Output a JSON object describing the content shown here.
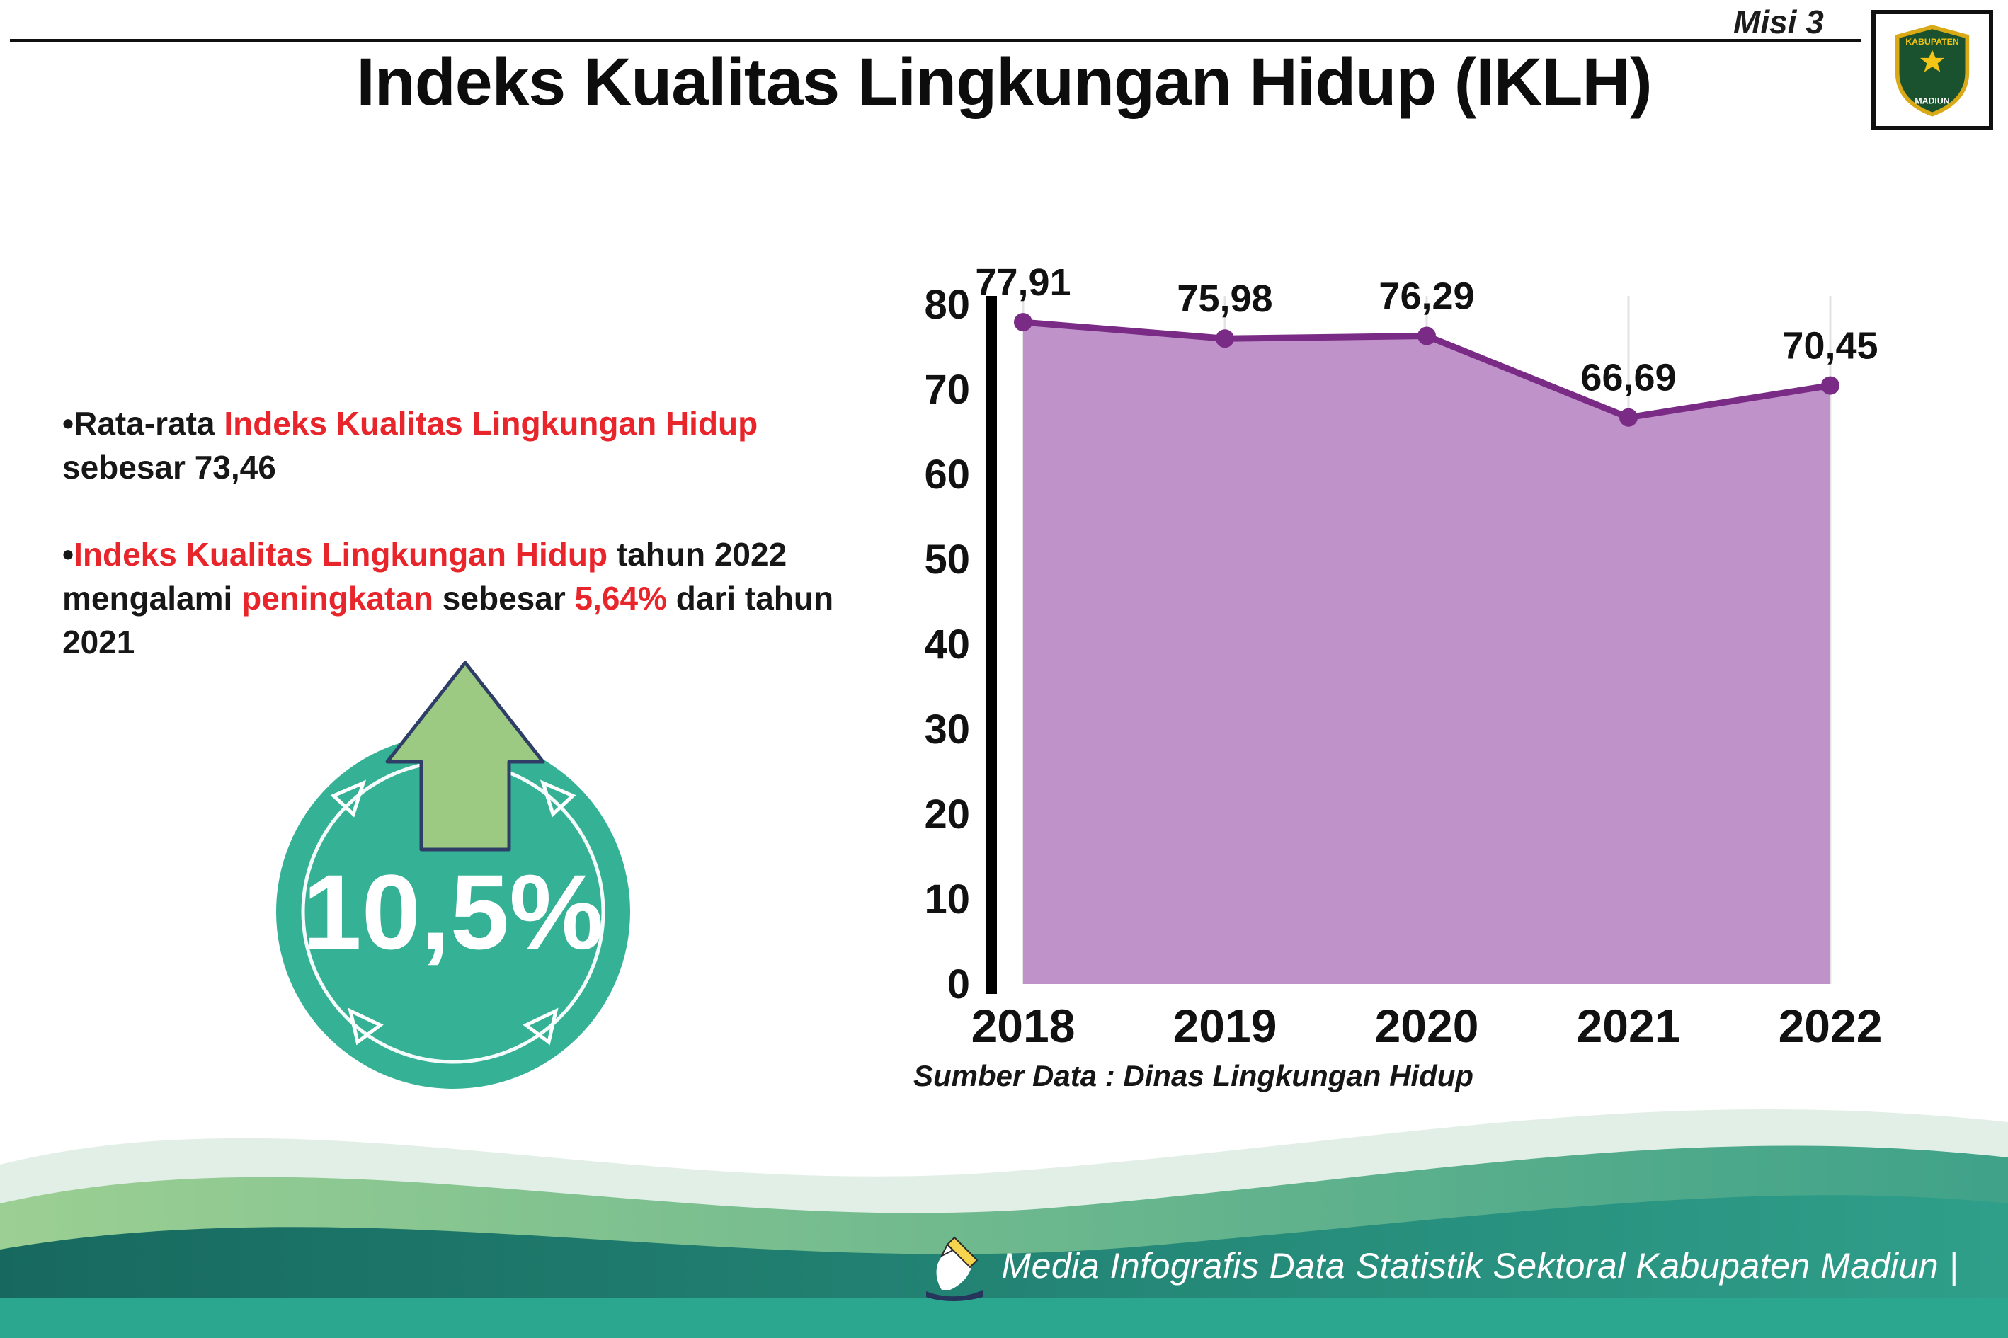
{
  "header": {
    "misi_label": "Misi 3",
    "title": "Indeks Kualitas Lingkungan Hidup (IKLH)"
  },
  "logo": {
    "top": "KABUPATEN",
    "bottom": "MADIUN"
  },
  "bullets": {
    "marker": "•",
    "b1": {
      "s1": "Rata-rata ",
      "s2": "Indeks Kualitas Lingkungan Hidup",
      "s3": " sebesar 73,46"
    },
    "b2": {
      "s1": "Indeks Kualitas Lingkungan Hidup",
      "s2": " tahun 2022 mengalami ",
      "s3": "peningkatan",
      "s4": " sebesar ",
      "s5": "5,64%",
      "s6": " dari tahun 2021"
    }
  },
  "increase_badge": {
    "value": "10,5%"
  },
  "chart_data": {
    "type": "area",
    "title": "Indeks Kualitas Lingkungan Hidup (IKLH)",
    "categories": [
      "2018",
      "2019",
      "2020",
      "2021",
      "2022"
    ],
    "values": [
      77.91,
      75.98,
      76.29,
      66.69,
      70.45
    ],
    "value_labels": [
      "77,91",
      "75,98",
      "76,29",
      "66,69",
      "70,45"
    ],
    "xlabel": "",
    "ylabel": "",
    "ylim": [
      0,
      80
    ],
    "yticks": [
      0,
      10,
      20,
      30,
      40,
      50,
      60,
      70,
      80
    ],
    "grid": "vertical-light",
    "legend": "none",
    "area_color": "#bf93c9",
    "line_color": "#7a2b85",
    "source": "Sumber Data : Dinas Lingkungan Hidup"
  },
  "footer": {
    "credit": "Media Infografis Data Statistik Sektoral Kabupaten Madiun |"
  },
  "colors": {
    "accent_red": "#e8252b",
    "circle_teal": "#35b295",
    "arrow_green": "#9cca82",
    "footer_teal": "#2ba78f"
  }
}
